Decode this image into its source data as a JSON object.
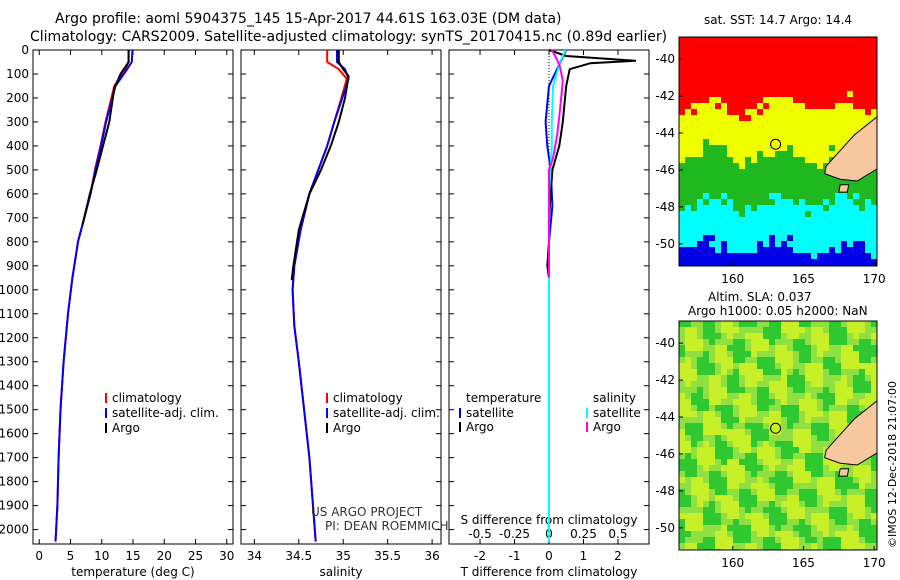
{
  "header": {
    "title_line1": "Argo profile: aoml 5904375_145 15-Apr-2017 44.61S 163.03E (DM data)",
    "title_line2": "Climatology: CARS2009. Satellite-adjusted climatology: synTS_20170415.nc (0.89d earlier)"
  },
  "colors": {
    "climatology": "#ff0000",
    "satellite": "#0000ff",
    "argo": "#000000",
    "sat_salinity": "#00ffff",
    "argo_salinity": "#ff00ff",
    "sst_warm": "#ff0000",
    "sst_mid": "#f0ff00",
    "sst_green": "#1fb81f",
    "sst_cool": "#00ffff",
    "sst_cold": "#0000e6",
    "land": "#f8c8a0",
    "sla_base": "#c8f028",
    "sla_dark": "#30c830"
  },
  "legend_left": [
    "climatology",
    "satellite-adj. clim.",
    "Argo"
  ],
  "legend_right_temp_title": "temperature",
  "legend_right_temp": [
    "satellite",
    "Argo"
  ],
  "legend_right_sal_title": "salinity",
  "legend_right_sal": [
    "satellite",
    "Argo"
  ],
  "credits": {
    "line1": "US ARGO PROJECT",
    "line2": "PI: DEAN ROEMMICH"
  },
  "maps": {
    "sst_title": "sat. SST: 14.7 Argo: 14.4",
    "sla_title": "Altim. SLA: 0.037",
    "sla_values": "Argo h1000: 0.05 h2000: NaN",
    "x_ticks": [
      "160",
      "165",
      "170"
    ],
    "y_ticks": [
      "-40",
      "-42",
      "-44",
      "-46",
      "-48",
      "-50"
    ],
    "stamp": "©IMOS 12-Dec-2018 21:07:00"
  },
  "chart_data": [
    {
      "type": "line",
      "title": "",
      "xlabel": "temperature (deg C)",
      "ylabel": "",
      "xlim": [
        -1,
        31
      ],
      "ylim": [
        2060,
        0
      ],
      "x_ticks": [
        0,
        5,
        10,
        15,
        20,
        25,
        30
      ],
      "y_ticks": [
        0,
        100,
        200,
        300,
        400,
        500,
        600,
        700,
        800,
        900,
        1000,
        1100,
        1200,
        1300,
        1400,
        1500,
        1600,
        1700,
        1800,
        1900,
        2000
      ],
      "series": [
        {
          "name": "climatology",
          "color": "#ff0000",
          "x": [
            14.3,
            14.3,
            13.6,
            12.0,
            10.6,
            9.8,
            8.9,
            8.2,
            7.2,
            6.2,
            5.3,
            4.6,
            3.9,
            3.4,
            3.1,
            2.9,
            2.6
          ],
          "depth": [
            0,
            50,
            90,
            150,
            300,
            400,
            500,
            600,
            700,
            800,
            950,
            1100,
            1300,
            1500,
            1700,
            1900,
            2050
          ]
        },
        {
          "name": "satellite-adj. clim.",
          "color": "#0000ff",
          "x": [
            14.9,
            14.8,
            13.8,
            12.2,
            10.7,
            9.9,
            9.0,
            8.2,
            7.2,
            6.2,
            5.3,
            4.6,
            3.9,
            3.4,
            3.1,
            2.9,
            2.6
          ],
          "depth": [
            0,
            50,
            90,
            150,
            300,
            400,
            500,
            600,
            700,
            800,
            950,
            1100,
            1300,
            1500,
            1700,
            1900,
            2050
          ]
        },
        {
          "name": "Argo",
          "color": "#000000",
          "x": [
            14.3,
            14.3,
            13.0,
            12.0,
            11.2,
            10.2,
            9.2,
            8.1,
            6.9
          ],
          "depth": [
            0,
            50,
            100,
            160,
            300,
            400,
            500,
            600,
            730
          ]
        }
      ]
    },
    {
      "type": "line",
      "title": "",
      "xlabel": "salinity",
      "ylabel": "",
      "xlim": [
        33.85,
        36.1
      ],
      "ylim": [
        2060,
        0
      ],
      "x_ticks": [
        34,
        34.5,
        35,
        35.5,
        36
      ],
      "x_tick_labels": [
        "34",
        "34.5",
        "35",
        "35.5",
        "36"
      ],
      "series": [
        {
          "name": "climatology",
          "color": "#ff0000",
          "x": [
            34.82,
            34.82,
            34.95,
            35.04,
            34.98,
            34.9,
            34.82,
            34.72,
            34.62,
            34.52,
            34.45,
            34.43,
            34.45,
            34.5,
            34.56,
            34.62,
            34.66,
            34.69
          ],
          "depth": [
            0,
            50,
            80,
            120,
            200,
            300,
            400,
            500,
            600,
            750,
            900,
            1000,
            1150,
            1300,
            1500,
            1700,
            1900,
            2050
          ]
        },
        {
          "name": "satellite-adj. clim.",
          "color": "#0000ff",
          "x": [
            34.93,
            34.93,
            35.02,
            35.06,
            34.99,
            34.9,
            34.82,
            34.72,
            34.62,
            34.52,
            34.45,
            34.43,
            34.45,
            34.5,
            34.56,
            34.62,
            34.66,
            34.69
          ],
          "depth": [
            0,
            50,
            80,
            120,
            200,
            300,
            400,
            500,
            600,
            750,
            900,
            1000,
            1150,
            1300,
            1500,
            1700,
            1900,
            2050
          ]
        },
        {
          "name": "Argo",
          "color": "#000000",
          "x": [
            34.95,
            34.95,
            35.0,
            35.06,
            35.02,
            34.95,
            34.86,
            34.75,
            34.62,
            34.5,
            34.44,
            34.42
          ],
          "depth": [
            0,
            50,
            80,
            110,
            200,
            300,
            400,
            500,
            600,
            750,
            900,
            960
          ]
        }
      ]
    },
    {
      "type": "line",
      "title": "",
      "xlabel": "T difference from climatology",
      "top_axis_label": "S difference from climatology",
      "xlim": [
        -2.9,
        2.9
      ],
      "ylim": [
        2060,
        0
      ],
      "x_ticks": [
        -2,
        -1,
        0,
        1,
        2
      ],
      "top_ticks": [
        -0.5,
        -0.25,
        0,
        0.25,
        0.5
      ],
      "top_tick_labels": [
        "-0.5",
        "-0.25",
        "0",
        "0.25",
        "0.5"
      ],
      "series": [
        {
          "name": "temperature satellite",
          "color": "#0000ff",
          "units": "deg C",
          "x": [
            0.5,
            0.3,
            0.0,
            -0.1,
            -0.05,
            0.05,
            0.1,
            0.0,
            0.0,
            0.0,
            0.0
          ],
          "depth": [
            0,
            60,
            150,
            300,
            400,
            500,
            650,
            800,
            1000,
            1500,
            2050
          ]
        },
        {
          "name": "temperature Argo",
          "color": "#000000",
          "units": "deg C",
          "x": [
            0.0,
            0.5,
            2.5,
            1.2,
            0.6,
            0.5,
            0.4,
            0.3,
            0.1,
            0.05,
            0.0,
            0.0,
            -0.05,
            0.0,
            0.0
          ],
          "depth": [
            0,
            25,
            45,
            55,
            80,
            150,
            300,
            400,
            500,
            600,
            700,
            800,
            900,
            950,
            960
          ]
        },
        {
          "name": "salinity satellite",
          "color": "#00ffff",
          "units": "psu",
          "x": [
            0.12,
            0.08,
            0.03,
            0.02,
            0.02,
            0.0,
            0.0,
            0.0,
            0.0
          ],
          "depth": [
            0,
            50,
            150,
            300,
            400,
            600,
            900,
            1500,
            2050
          ]
        },
        {
          "name": "salinity Argo",
          "color": "#ff00ff",
          "units": "psu",
          "x": [
            0.02,
            0.05,
            0.08,
            0.1,
            0.08,
            0.06,
            0.03,
            0.0,
            0.0,
            0.0
          ],
          "depth": [
            0,
            30,
            70,
            130,
            250,
            350,
            450,
            500,
            700,
            950
          ]
        }
      ]
    }
  ]
}
